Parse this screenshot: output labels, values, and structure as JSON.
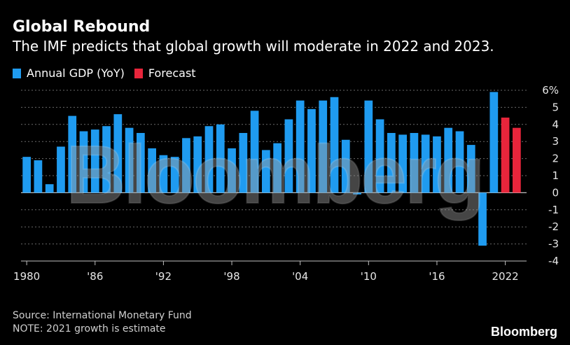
{
  "header": {
    "title": "Global Rebound",
    "subtitle": "The IMF predicts that global growth will moderate in 2022 and 2023."
  },
  "legend": [
    {
      "label": "Annual GDP (YoY)",
      "color": "#1f9bf0"
    },
    {
      "label": "Forecast",
      "color": "#e8253b"
    }
  ],
  "footer": {
    "source": "Source: International Monetary Fund",
    "note": "NOTE: 2021 growth is estimate",
    "brand": "Bloomberg"
  },
  "watermark": "Bloomberg",
  "chart_data": {
    "type": "bar",
    "x": [
      1980,
      1981,
      1982,
      1983,
      1984,
      1985,
      1986,
      1987,
      1988,
      1989,
      1990,
      1991,
      1992,
      1993,
      1994,
      1995,
      1996,
      1997,
      1998,
      1999,
      2000,
      2001,
      2002,
      2003,
      2004,
      2005,
      2006,
      2007,
      2008,
      2009,
      2010,
      2011,
      2012,
      2013,
      2014,
      2015,
      2016,
      2017,
      2018,
      2019,
      2020,
      2021,
      2022,
      2023
    ],
    "series": [
      {
        "name": "Annual GDP (YoY)",
        "color": "#1f9bf0",
        "values": [
          2.1,
          1.9,
          0.5,
          2.7,
          4.5,
          3.6,
          3.7,
          3.9,
          4.6,
          3.8,
          3.5,
          2.6,
          2.2,
          2.1,
          3.2,
          3.3,
          3.9,
          4.0,
          2.6,
          3.5,
          4.8,
          2.5,
          2.9,
          4.3,
          5.4,
          4.9,
          5.4,
          5.6,
          3.1,
          -0.1,
          5.4,
          4.3,
          3.5,
          3.4,
          3.5,
          3.4,
          3.3,
          3.8,
          3.6,
          2.8,
          -3.1,
          5.9,
          null,
          null
        ]
      },
      {
        "name": "Forecast",
        "color": "#e8253b",
        "values": [
          null,
          null,
          null,
          null,
          null,
          null,
          null,
          null,
          null,
          null,
          null,
          null,
          null,
          null,
          null,
          null,
          null,
          null,
          null,
          null,
          null,
          null,
          null,
          null,
          null,
          null,
          null,
          null,
          null,
          null,
          null,
          null,
          null,
          null,
          null,
          null,
          null,
          null,
          null,
          null,
          null,
          null,
          4.4,
          3.8
        ]
      }
    ],
    "x_tick_labels": [
      "1980",
      "'86",
      "'92",
      "'98",
      "'04",
      "'10",
      "'16",
      "2022"
    ],
    "y_tick_labels": [
      "6%",
      "5",
      "4",
      "3",
      "2",
      "1",
      "0",
      "-1",
      "-2",
      "-3",
      "-4"
    ],
    "ylim": [
      -4,
      6
    ],
    "grid": "horizontal dotted"
  }
}
